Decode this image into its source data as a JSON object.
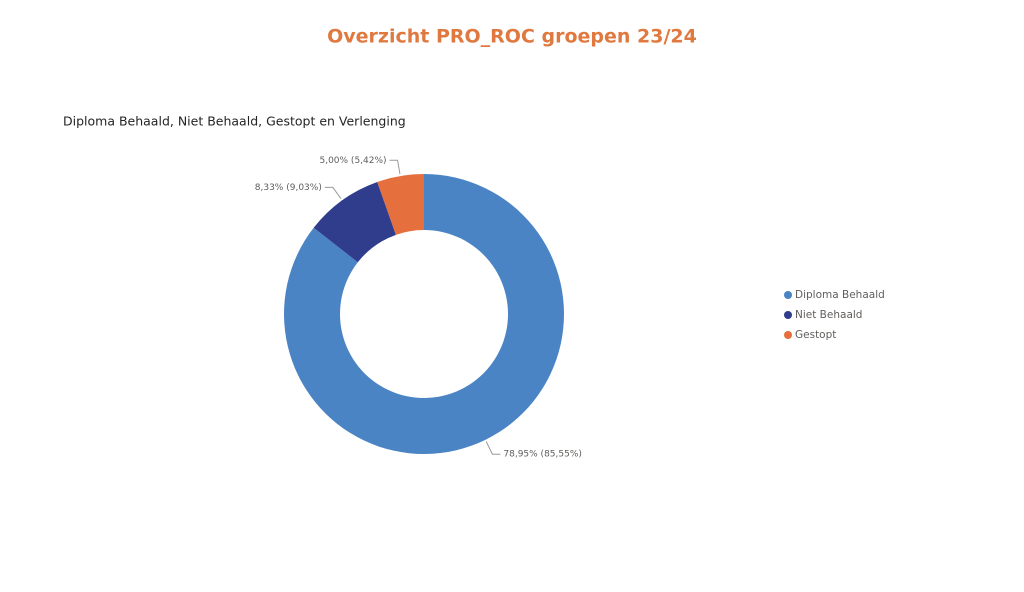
{
  "chart_data": {
    "type": "donut",
    "title": "Overzicht PRO_ROC groepen 23/24",
    "subtitle": "Diploma Behaald, Niet Behaald, Gestopt en Verlenging",
    "categories": [
      "Diploma Behaald",
      "Niet Behaald",
      "Gestopt"
    ],
    "values": [
      78.95,
      8.33,
      5.0
    ],
    "value_labels": [
      "78,95% (85,55%)",
      "8,33% (9,03%)",
      "5,00% (5,42%)"
    ],
    "colors": [
      "#4a84c4",
      "#2f3d8c",
      "#e56f3d"
    ],
    "legend": "right"
  }
}
